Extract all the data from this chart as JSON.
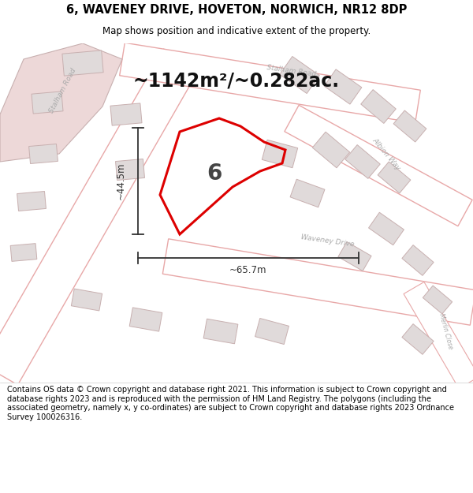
{
  "title": "6, WAVENEY DRIVE, HOVETON, NORWICH, NR12 8DP",
  "subtitle": "Map shows position and indicative extent of the property.",
  "area_text": "~1142m²/~0.282ac.",
  "label_number": "6",
  "dim_width": "~65.7m",
  "dim_height": "~44.5m",
  "footer": "Contains OS data © Crown copyright and database right 2021. This information is subject to Crown copyright and database rights 2023 and is reproduced with the permission of HM Land Registry. The polygons (including the associated geometry, namely x, y co-ordinates) are subject to Crown copyright and database rights 2023 Ordnance Survey 100026316.",
  "map_bg": "#f2eded",
  "road_fill": "#ffffff",
  "road_line": "#e8a8a8",
  "building_fill": "#e0dada",
  "building_line": "#c8b0b0",
  "highlight_fill": "#edd8d8",
  "property_line": "#dd0000",
  "title_color": "#000000",
  "footer_color": "#000000",
  "dim_color": "#333333",
  "road_label_color": "#aaaaaa",
  "number_color": "#444444"
}
